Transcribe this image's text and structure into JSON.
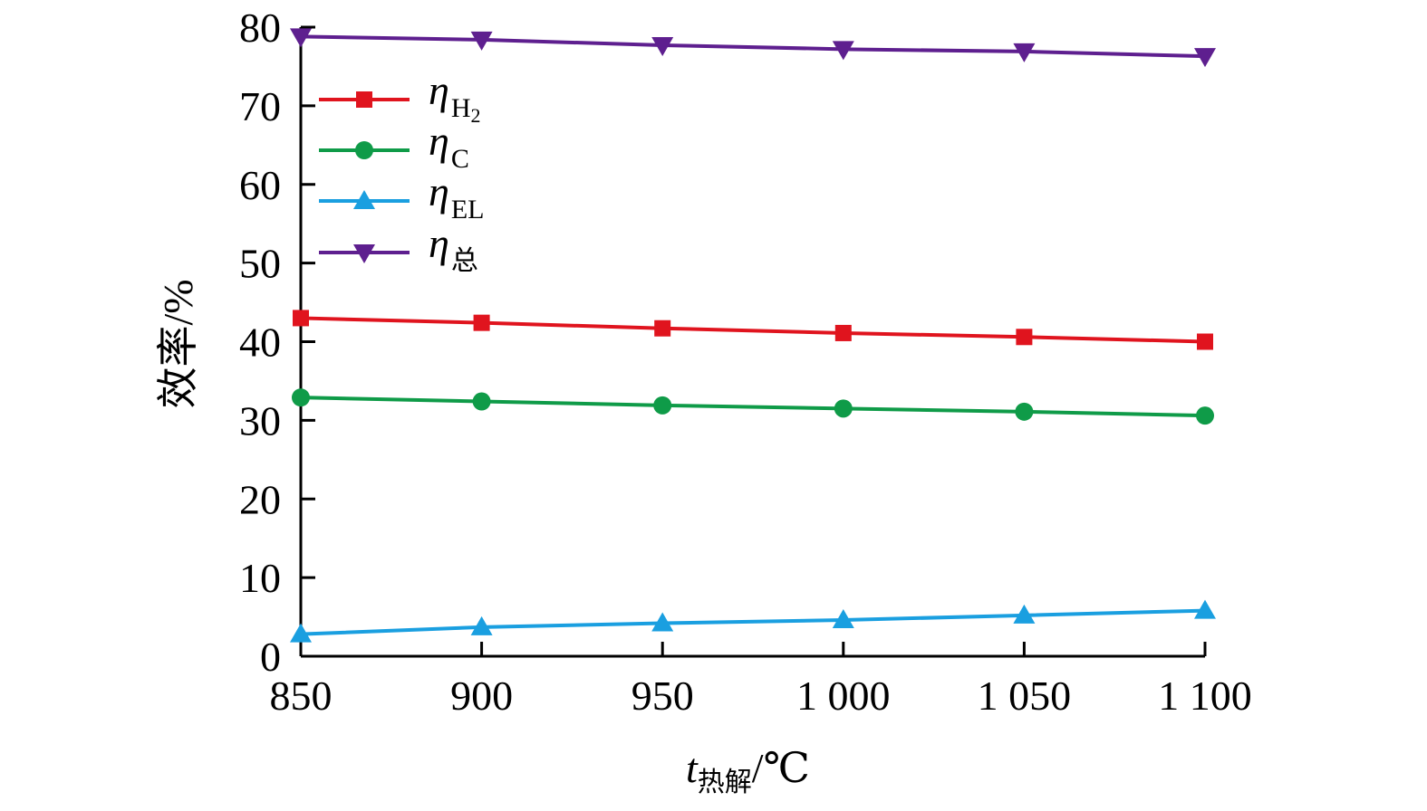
{
  "chart_data": {
    "type": "line",
    "title": "",
    "xlabel": {
      "main": "t",
      "sub": "热解",
      "unit": "/℃"
    },
    "ylabel": "效率/%",
    "x": [
      850,
      900,
      950,
      1000,
      1050,
      1100
    ],
    "x_tick_labels": [
      "850",
      "900",
      "950",
      "1 000",
      "1 050",
      "1 100"
    ],
    "y_ticks": [
      0,
      10,
      20,
      30,
      40,
      50,
      60,
      70,
      80
    ],
    "y_tick_labels": [
      "0",
      "10",
      "20",
      "30",
      "40",
      "50",
      "60",
      "70",
      "80"
    ],
    "xlim": [
      850,
      1100
    ],
    "ylim": [
      0,
      80
    ],
    "grid": false,
    "legend_position": "top-left",
    "series": [
      {
        "key": "h2",
        "name": "η",
        "sub": "H",
        "sub2": "2",
        "color": "#e0141e",
        "marker": "square",
        "values": [
          43.0,
          42.4,
          41.7,
          41.1,
          40.6,
          40.0
        ]
      },
      {
        "key": "c",
        "name": "η",
        "sub": "C",
        "sub2": "",
        "color": "#0f9b48",
        "marker": "circle",
        "values": [
          32.9,
          32.4,
          31.9,
          31.5,
          31.1,
          30.6
        ]
      },
      {
        "key": "el",
        "name": "η",
        "sub": "EL",
        "sub2": "",
        "color": "#1a9fe0",
        "marker": "triangle-up",
        "values": [
          2.8,
          3.7,
          4.2,
          4.6,
          5.2,
          5.8
        ]
      },
      {
        "key": "total",
        "name": "η",
        "sub": "总",
        "sub2": "",
        "color": "#5e1f8f",
        "marker": "triangle-down",
        "values": [
          78.8,
          78.4,
          77.7,
          77.2,
          76.9,
          76.3
        ]
      }
    ]
  }
}
